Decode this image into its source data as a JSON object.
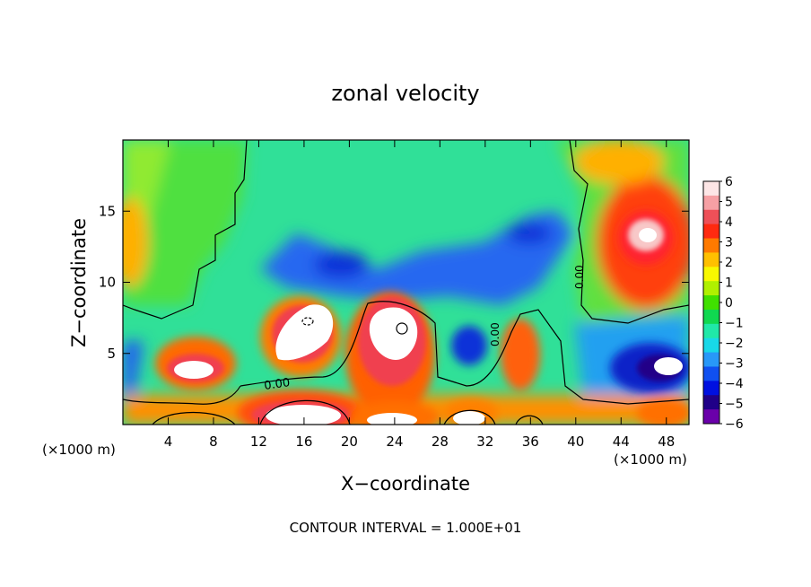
{
  "chart_data": {
    "type": "heatmap",
    "title": "zonal velocity",
    "xlabel": "X−coordinate",
    "ylabel": "Z−coordinate",
    "x_unit_left": "(×1000 m)",
    "x_unit_right": "(×1000 m)",
    "xlim": [
      0,
      50
    ],
    "ylim": [
      0,
      20
    ],
    "x_ticks": [
      4,
      8,
      12,
      16,
      20,
      24,
      28,
      32,
      36,
      40,
      44,
      48
    ],
    "y_ticks": [
      5,
      10,
      15
    ],
    "colorbar": {
      "min": -6,
      "max": 6,
      "labels": [
        "6",
        "5",
        "4",
        "3",
        "2",
        "1",
        "0",
        "−1",
        "−2",
        "−3",
        "−4",
        "−5",
        "−6"
      ],
      "colors": [
        "#fde6e6",
        "#f6a0a4",
        "#ee5058",
        "#ff2a10",
        "#ff7a00",
        "#ffc000",
        "#f8f800",
        "#b0f000",
        "#40e000",
        "#10d850",
        "#20e8a8",
        "#18d8e8",
        "#2898f8",
        "#1050f0",
        "#0010e0",
        "#200088",
        "#6a00aa"
      ]
    },
    "contour_interval": "CONTOUR INTERVAL = 1.000E+01",
    "contour_labels": [
      "0.00",
      "0.00",
      "0.00"
    ]
  }
}
